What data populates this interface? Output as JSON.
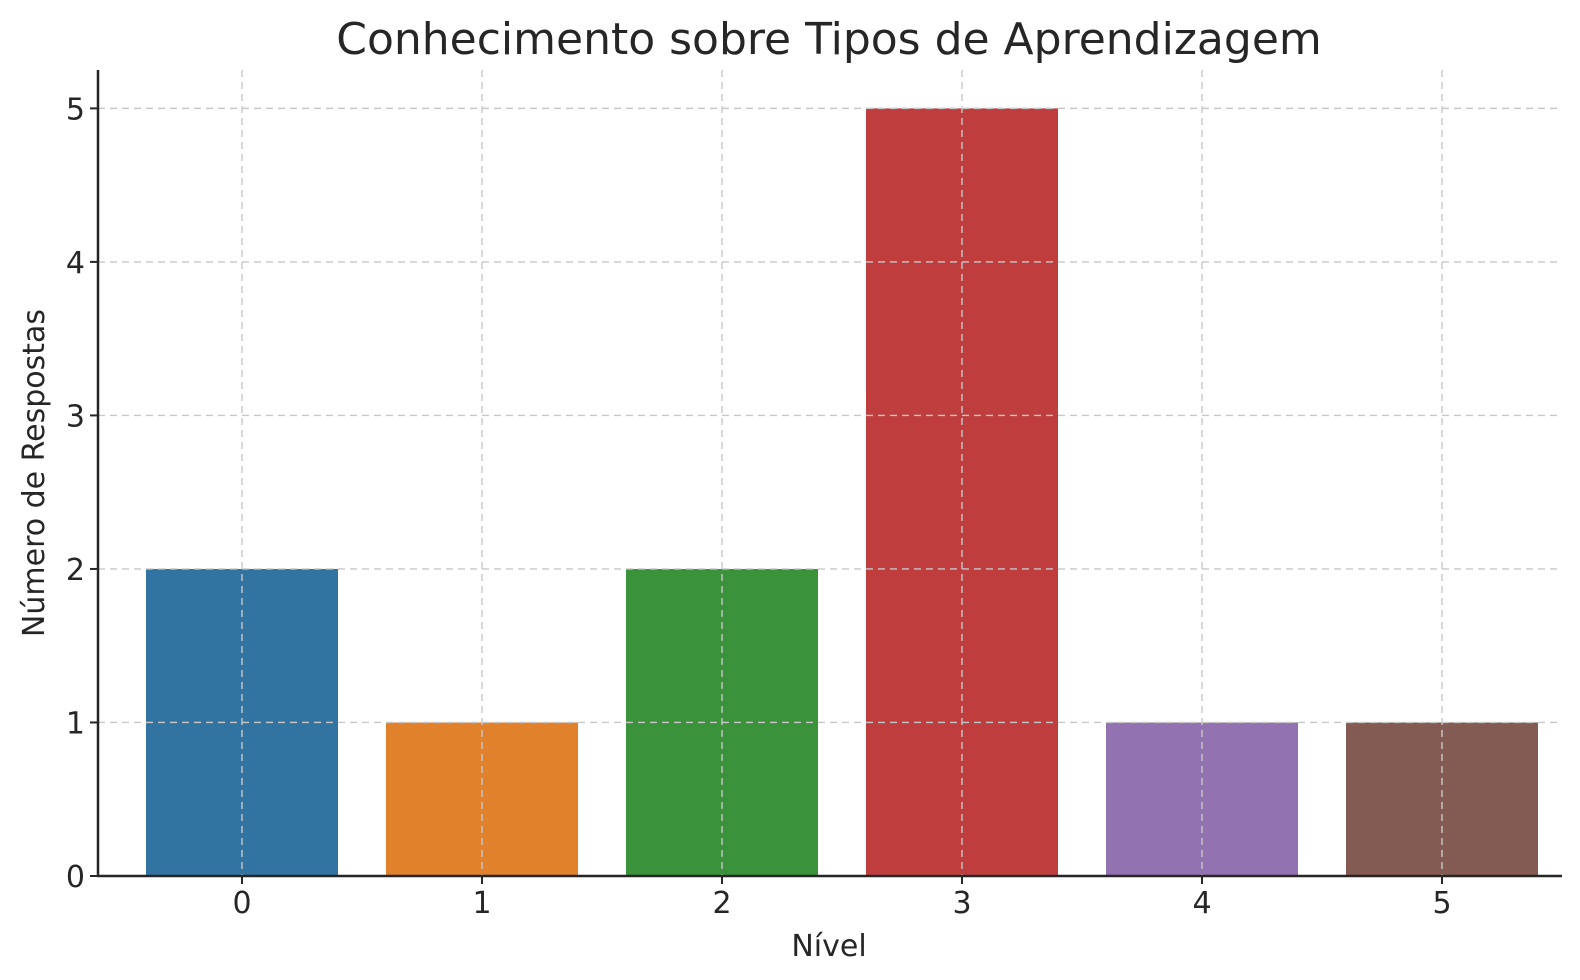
{
  "chart_data": {
    "type": "bar",
    "title": "Conhecimento sobre Tipos de Aprendizagem",
    "xlabel": "Nível",
    "ylabel": "Número de Respostas",
    "categories": [
      "0",
      "1",
      "2",
      "3",
      "4",
      "5"
    ],
    "values": [
      2,
      1,
      2,
      5,
      1,
      1
    ],
    "colors": [
      "#3274a1",
      "#e1812c",
      "#3a923a",
      "#c03d3e",
      "#9372b2",
      "#845b53"
    ],
    "ylim": [
      0,
      5.25
    ],
    "yticks": [
      "0",
      "1",
      "2",
      "3",
      "4",
      "5"
    ],
    "grid": true,
    "legend": "none"
  }
}
